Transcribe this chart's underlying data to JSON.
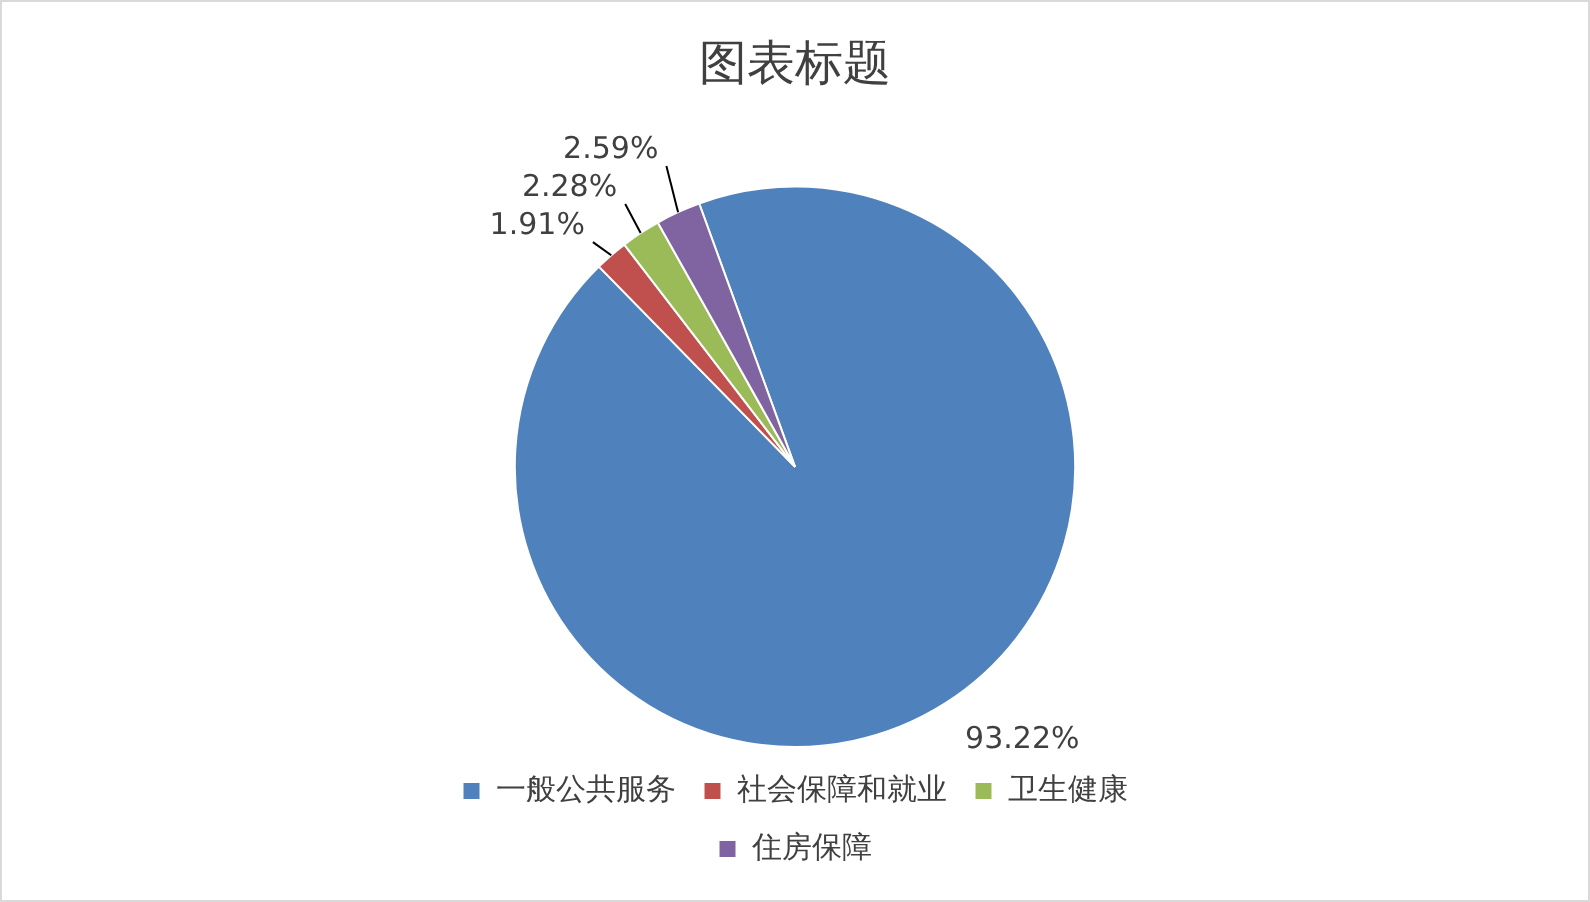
{
  "chart_data": {
    "type": "pie",
    "title": "图表标题",
    "categories": [
      "一般公共服务",
      "社会保障和就业",
      "卫生健康",
      "住房保障"
    ],
    "values": [
      93.22,
      1.91,
      2.28,
      2.59
    ],
    "colors": [
      "#4f81bd",
      "#c0504d",
      "#9bbb59",
      "#8064a2"
    ],
    "value_labels": [
      "93.22%",
      "1.91%",
      "2.28%",
      "2.59%"
    ],
    "legend": "bottom"
  }
}
